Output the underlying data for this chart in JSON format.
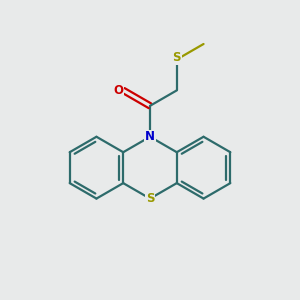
{
  "bg_color": "#e8eaea",
  "bond_color": "#2d6b6b",
  "sulfur_color": "#999900",
  "nitrogen_color": "#0000cc",
  "oxygen_color": "#cc0000",
  "line_width": 1.6,
  "figsize": [
    3.0,
    3.0
  ],
  "dpi": 100,
  "xlim": [
    0,
    10
  ],
  "ylim": [
    0,
    10
  ]
}
